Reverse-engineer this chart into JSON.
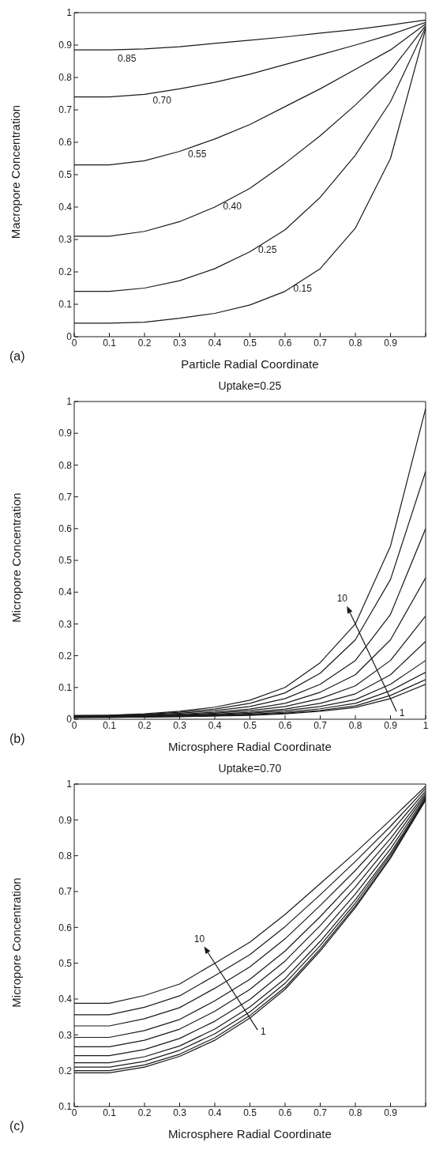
{
  "chart_data": [
    {
      "type": "line",
      "xlabel": "Particle Radial Coordinate",
      "ylabel": "Macropore Concentration",
      "annotations": [
        "(a)"
      ],
      "x": [
        0,
        0.1,
        0.2,
        0.3,
        0.4,
        0.5,
        0.6,
        0.7,
        0.8,
        0.9,
        1
      ],
      "xlim": [
        0,
        1
      ],
      "xticks": [
        0,
        0.1,
        0.2,
        0.3,
        0.4,
        0.5,
        0.6,
        0.7,
        0.8,
        0.9,
        {
          "value": 1,
          "label": null
        }
      ],
      "ylim": [
        0,
        1
      ],
      "yticks": [
        0,
        0.1,
        0.2,
        0.3,
        0.4,
        0.5,
        0.6,
        0.7,
        0.8,
        0.9,
        1
      ],
      "series": [
        {
          "name": "0.85",
          "color": "#1a1a1a",
          "values": [
            0.885,
            0.885,
            0.888,
            0.895,
            0.905,
            0.915,
            0.925,
            0.937,
            0.948,
            0.962,
            0.977
          ]
        },
        {
          "name": "0.70",
          "color": "#1a1a1a",
          "values": [
            0.74,
            0.74,
            0.748,
            0.765,
            0.785,
            0.81,
            0.84,
            0.87,
            0.9,
            0.932,
            0.97
          ]
        },
        {
          "name": "0.55",
          "color": "#1a1a1a",
          "values": [
            0.53,
            0.53,
            0.543,
            0.572,
            0.61,
            0.655,
            0.71,
            0.765,
            0.825,
            0.885,
            0.965
          ]
        },
        {
          "name": "0.40",
          "color": "#1a1a1a",
          "values": [
            0.31,
            0.31,
            0.325,
            0.355,
            0.4,
            0.458,
            0.535,
            0.62,
            0.715,
            0.82,
            0.96
          ]
        },
        {
          "name": "0.25",
          "color": "#1a1a1a",
          "values": [
            0.14,
            0.14,
            0.15,
            0.173,
            0.21,
            0.262,
            0.33,
            0.43,
            0.56,
            0.725,
            0.955
          ]
        },
        {
          "name": "0.15",
          "color": "#1a1a1a",
          "values": [
            0.042,
            0.042,
            0.045,
            0.057,
            0.072,
            0.098,
            0.14,
            0.21,
            0.335,
            0.55,
            0.95
          ]
        }
      ]
    },
    {
      "type": "line",
      "title": "Uptake=0.25",
      "xlabel": "Microsphere Radial Coordinate",
      "ylabel": "Micropore Concentration",
      "annotations": [
        "(b)",
        {
          "text": "10",
          "x": 0.8,
          "y": 0.3
        },
        {
          "text": "1",
          "x": 0.9,
          "y": 0.065
        }
      ],
      "x": [
        0,
        0.1,
        0.2,
        0.3,
        0.4,
        0.5,
        0.6,
        0.7,
        0.8,
        0.9,
        1
      ],
      "xlim": [
        0,
        1
      ],
      "xticks": [
        0,
        0.1,
        0.2,
        0.3,
        0.4,
        0.5,
        0.6,
        0.7,
        0.8,
        0.9,
        1
      ],
      "ylim": [
        0,
        1
      ],
      "yticks": [
        0,
        0.1,
        0.2,
        0.3,
        0.4,
        0.5,
        0.6,
        0.7,
        0.8,
        0.9,
        1
      ],
      "series": [
        {
          "color": "#1a1a1a",
          "values": [
            0.005,
            0.006,
            0.007,
            0.008,
            0.01,
            0.012,
            0.017,
            0.025,
            0.037,
            0.065,
            0.11
          ]
        },
        {
          "color": "#1a1a1a",
          "values": [
            0.006,
            0.006,
            0.007,
            0.009,
            0.011,
            0.014,
            0.019,
            0.028,
            0.042,
            0.075,
            0.125
          ]
        },
        {
          "color": "#1a1a1a",
          "values": [
            0.006,
            0.007,
            0.008,
            0.01,
            0.012,
            0.016,
            0.022,
            0.033,
            0.05,
            0.09,
            0.148
          ]
        },
        {
          "color": "#1a1a1a",
          "values": [
            0.007,
            0.007,
            0.009,
            0.011,
            0.014,
            0.019,
            0.027,
            0.04,
            0.062,
            0.11,
            0.185
          ]
        },
        {
          "color": "#1a1a1a",
          "values": [
            0.008,
            0.008,
            0.01,
            0.012,
            0.016,
            0.022,
            0.032,
            0.05,
            0.08,
            0.14,
            0.245
          ]
        },
        {
          "color": "#1a1a1a",
          "values": [
            0.008,
            0.009,
            0.011,
            0.014,
            0.019,
            0.027,
            0.04,
            0.065,
            0.105,
            0.185,
            0.325
          ]
        },
        {
          "color": "#1a1a1a",
          "values": [
            0.009,
            0.01,
            0.012,
            0.016,
            0.022,
            0.032,
            0.05,
            0.085,
            0.14,
            0.25,
            0.445
          ]
        },
        {
          "color": "#1a1a1a",
          "values": [
            0.01,
            0.011,
            0.014,
            0.019,
            0.027,
            0.04,
            0.065,
            0.11,
            0.185,
            0.33,
            0.6
          ]
        },
        {
          "color": "#1a1a1a",
          "values": [
            0.011,
            0.012,
            0.015,
            0.022,
            0.032,
            0.05,
            0.083,
            0.145,
            0.25,
            0.44,
            0.78
          ]
        },
        {
          "color": "#1a1a1a",
          "values": [
            0.012,
            0.013,
            0.017,
            0.025,
            0.038,
            0.06,
            0.1,
            0.178,
            0.3,
            0.545,
            0.978
          ]
        }
      ]
    },
    {
      "type": "line",
      "title": "Uptake=0.70",
      "xlabel": "Microsphere Radial Coordinate",
      "ylabel": "Micropore Concentration",
      "annotations": [
        "(c)",
        {
          "text": "10",
          "x": 0.4,
          "y": 0.5
        },
        {
          "text": "1",
          "x": 0.5,
          "y": 0.347
        }
      ],
      "x": [
        0,
        0.1,
        0.2,
        0.3,
        0.4,
        0.5,
        0.6,
        0.7,
        0.8,
        0.9,
        1
      ],
      "xlim": [
        0,
        1
      ],
      "xticks": [
        0,
        0.1,
        0.2,
        0.3,
        0.4,
        0.5,
        0.6,
        0.7,
        0.8,
        0.9,
        {
          "value": 1,
          "label": null
        }
      ],
      "ylim": [
        0.1,
        1
      ],
      "yticks": [
        0.1,
        0.2,
        0.3,
        0.4,
        0.5,
        0.6,
        0.7,
        0.8,
        0.9,
        1
      ],
      "series": [
        {
          "color": "#1a1a1a",
          "values": [
            0.194,
            0.194,
            0.21,
            0.24,
            0.285,
            0.347,
            0.427,
            0.534,
            0.655,
            0.793,
            0.955
          ]
        },
        {
          "color": "#1a1a1a",
          "values": [
            0.2,
            0.2,
            0.216,
            0.246,
            0.292,
            0.354,
            0.433,
            0.54,
            0.66,
            0.796,
            0.956
          ]
        },
        {
          "color": "#1a1a1a",
          "values": [
            0.21,
            0.21,
            0.226,
            0.257,
            0.303,
            0.364,
            0.444,
            0.549,
            0.668,
            0.802,
            0.958
          ]
        },
        {
          "color": "#1a1a1a",
          "values": [
            0.222,
            0.222,
            0.239,
            0.269,
            0.316,
            0.378,
            0.457,
            0.561,
            0.677,
            0.808,
            0.961
          ]
        },
        {
          "color": "#1a1a1a",
          "values": [
            0.242,
            0.242,
            0.259,
            0.29,
            0.338,
            0.399,
            0.479,
            0.58,
            0.693,
            0.819,
            0.965
          ]
        },
        {
          "color": "#1a1a1a",
          "values": [
            0.267,
            0.267,
            0.285,
            0.316,
            0.366,
            0.427,
            0.506,
            0.605,
            0.713,
            0.833,
            0.97
          ]
        },
        {
          "color": "#1a1a1a",
          "values": [
            0.293,
            0.293,
            0.312,
            0.343,
            0.395,
            0.455,
            0.534,
            0.63,
            0.734,
            0.848,
            0.975
          ]
        },
        {
          "color": "#1a1a1a",
          "values": [
            0.325,
            0.325,
            0.345,
            0.376,
            0.43,
            0.49,
            0.568,
            0.661,
            0.759,
            0.865,
            0.981
          ]
        },
        {
          "color": "#1a1a1a",
          "values": [
            0.356,
            0.356,
            0.377,
            0.409,
            0.465,
            0.524,
            0.602,
            0.691,
            0.784,
            0.882,
            0.988
          ]
        },
        {
          "color": "#1a1a1a",
          "values": [
            0.388,
            0.388,
            0.41,
            0.442,
            0.5,
            0.559,
            0.636,
            0.722,
            0.809,
            0.9,
            0.994
          ]
        }
      ]
    }
  ]
}
